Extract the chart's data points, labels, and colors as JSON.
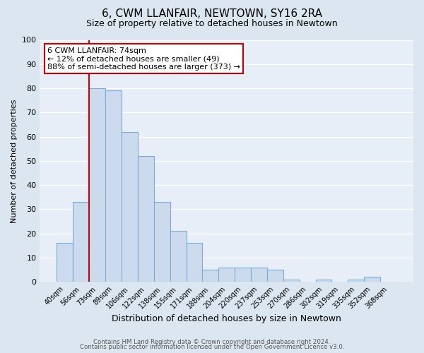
{
  "title": "6, CWM LLANFAIR, NEWTOWN, SY16 2RA",
  "subtitle": "Size of property relative to detached houses in Newtown",
  "xlabel": "Distribution of detached houses by size in Newtown",
  "ylabel": "Number of detached properties",
  "bin_labels": [
    "40sqm",
    "56sqm",
    "73sqm",
    "89sqm",
    "106sqm",
    "122sqm",
    "138sqm",
    "155sqm",
    "171sqm",
    "188sqm",
    "204sqm",
    "220sqm",
    "237sqm",
    "253sqm",
    "270sqm",
    "286sqm",
    "302sqm",
    "319sqm",
    "335sqm",
    "352sqm",
    "368sqm"
  ],
  "bar_values": [
    16,
    33,
    80,
    79,
    62,
    52,
    33,
    21,
    16,
    5,
    6,
    6,
    6,
    5,
    1,
    0,
    1,
    0,
    1,
    2,
    0
  ],
  "bar_color": "#ccdaed",
  "bar_edge_color": "#7aacd6",
  "vline_x": 1.5,
  "vline_color": "#cc0000",
  "ylim": [
    0,
    100
  ],
  "annotation_title": "6 CWM LLANFAIR: 74sqm",
  "annotation_line1": "← 12% of detached houses are smaller (49)",
  "annotation_line2": "88% of semi-detached houses are larger (373) →",
  "annotation_box_color": "#ffffff",
  "annotation_box_edge_color": "#cc0000",
  "footer_line1": "Contains HM Land Registry data © Crown copyright and database right 2024.",
  "footer_line2": "Contains public sector information licensed under the Open Government Licence v3.0.",
  "background_color": "#dce6f0",
  "plot_background_color": "#e8eef8",
  "grid_color": "#ffffff",
  "title_fontsize": 11,
  "subtitle_fontsize": 9,
  "ylabel_fontsize": 8,
  "xlabel_fontsize": 9
}
